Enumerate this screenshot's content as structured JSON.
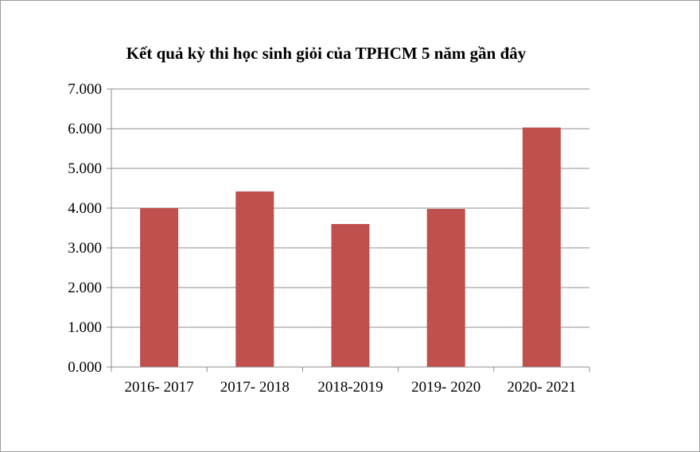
{
  "chart_data": {
    "type": "bar",
    "title": "Kết quả kỳ thi học sinh giỏi của TPHCM 5 năm gần đây",
    "xlabel": "",
    "ylabel": "",
    "categories": [
      "2016- 2017",
      "2017- 2018",
      "2018-2019",
      "2019- 2020",
      "2020- 2021"
    ],
    "values": [
      4.0,
      4.42,
      3.6,
      3.98,
      6.03
    ],
    "ylim": [
      0,
      7
    ],
    "yticks": [
      0,
      1,
      2,
      3,
      4,
      5,
      6,
      7
    ],
    "ytick_labels": [
      "0.000",
      "1.000",
      "2.000",
      "3.000",
      "4.000",
      "5.000",
      "6.000",
      "7.000"
    ],
    "grid": true,
    "legend": "none",
    "bar_color": "#c0504d"
  }
}
